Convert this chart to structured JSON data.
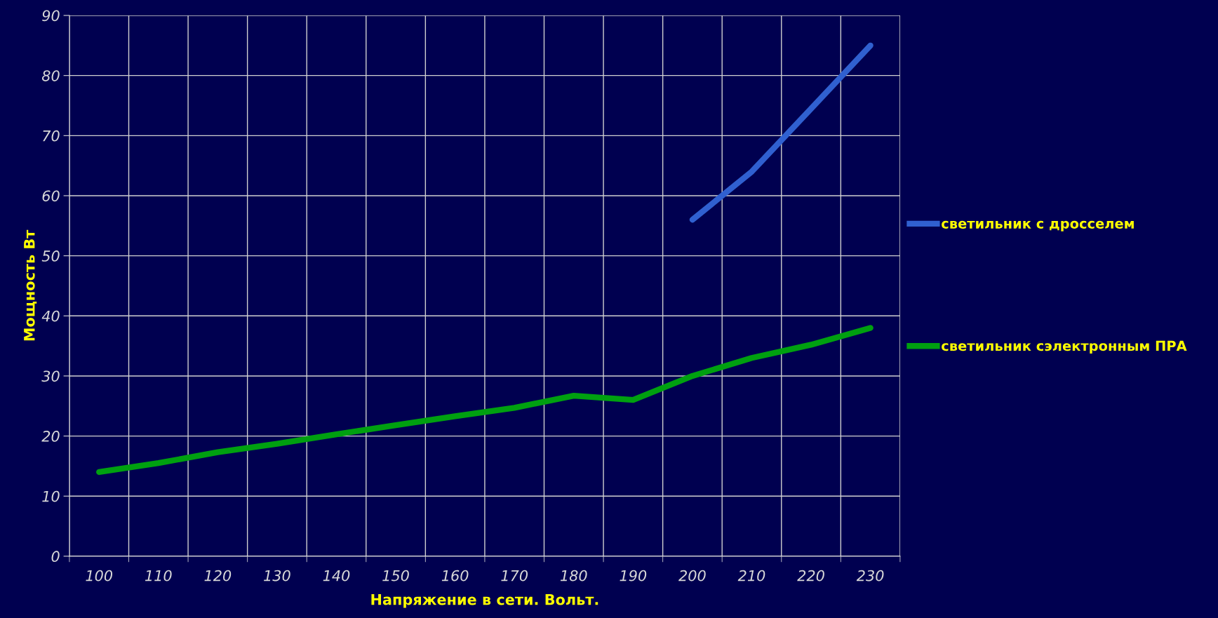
{
  "chart_data": {
    "type": "line",
    "xlabel": "Напряжение в сети. Вольт.",
    "ylabel": "Мощность Вт",
    "categories": [
      "100",
      "110",
      "120",
      "130",
      "140",
      "150",
      "160",
      "170",
      "180",
      "190",
      "200",
      "210",
      "220",
      "230"
    ],
    "series": [
      {
        "name": "светильник с дросселем",
        "color": "#3060d0",
        "values": [
          null,
          null,
          null,
          null,
          null,
          null,
          null,
          null,
          null,
          null,
          56,
          64,
          74.5,
          85
        ]
      },
      {
        "name": "светильник сэлектронным ПРА",
        "color": "#00a010",
        "values": [
          14,
          15.5,
          17.3,
          18.7,
          20.3,
          21.8,
          23.3,
          24.7,
          26.7,
          26,
          30,
          33,
          35.2,
          38
        ]
      }
    ],
    "ylim": [
      0,
      90
    ],
    "yticks": [
      0,
      10,
      20,
      30,
      40,
      50,
      60,
      70,
      80,
      90
    ],
    "grid": true,
    "legend": "right",
    "marker": "none",
    "line_style": "solid"
  }
}
